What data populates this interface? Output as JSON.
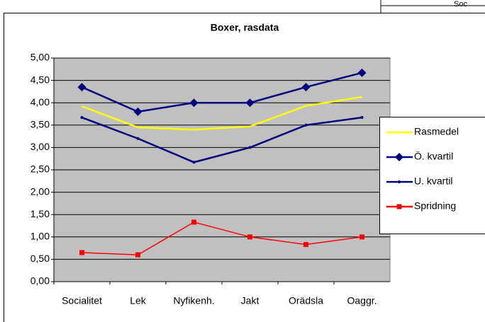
{
  "fragment": "Soc",
  "chart_data": {
    "type": "line",
    "title": "Boxer, rasdata",
    "categories": [
      "Socialitet",
      "Lek",
      "Nyfikenh.",
      "Jakt",
      "Orädsla",
      "Oaggr."
    ],
    "series": [
      {
        "name": "Rasmedel",
        "color": "#ffff00",
        "marker": "none",
        "values": [
          3.92,
          3.45,
          3.4,
          3.47,
          3.93,
          4.13
        ]
      },
      {
        "name": "Ö. kvartil",
        "color": "#000080",
        "marker": "diamond",
        "values": [
          4.35,
          3.8,
          4.0,
          4.0,
          4.35,
          4.67
        ]
      },
      {
        "name": "U. kvartil",
        "color": "#000080",
        "marker": "dot",
        "values": [
          3.67,
          3.2,
          2.67,
          3.0,
          3.5,
          3.67
        ]
      },
      {
        "name": "Spridning",
        "color": "#ff0000",
        "marker": "square",
        "values": [
          0.65,
          0.6,
          1.33,
          1.0,
          0.83,
          1.0
        ]
      }
    ],
    "ylim": [
      0,
      5
    ],
    "yticks": [
      {
        "value": 0,
        "label": "0,00"
      },
      {
        "value": 0.5,
        "label": "0,50"
      },
      {
        "value": 1,
        "label": "1,00"
      },
      {
        "value": 1.5,
        "label": "1,50"
      },
      {
        "value": 2,
        "label": "2,00"
      },
      {
        "value": 2.5,
        "label": "2,50"
      },
      {
        "value": 3,
        "label": "3,00"
      },
      {
        "value": 3.5,
        "label": "3,50"
      },
      {
        "value": 4,
        "label": "4,00"
      },
      {
        "value": 4.5,
        "label": "4,50"
      },
      {
        "value": 5,
        "label": "5,00"
      }
    ],
    "grid": true,
    "legend": "right"
  }
}
